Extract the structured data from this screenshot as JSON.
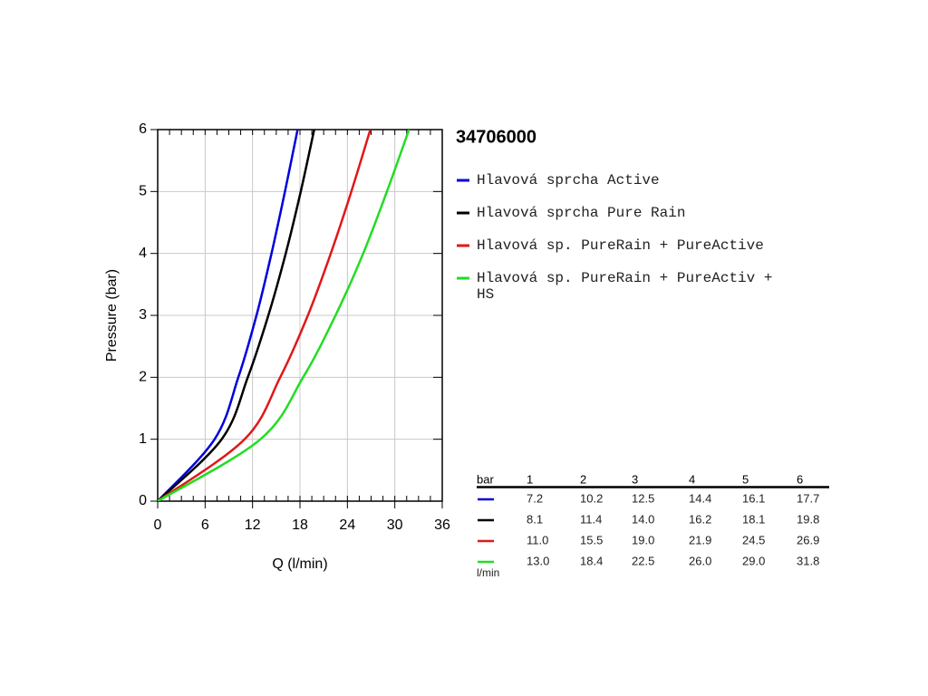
{
  "chart_data": {
    "type": "line",
    "title": "34706000",
    "x_label": "Q (l/min)",
    "y_label": "Pressure (bar)",
    "xlim": [
      0,
      36
    ],
    "xticks": [
      0,
      6,
      12,
      18,
      24,
      30,
      36
    ],
    "ylim": [
      0,
      6
    ],
    "yticks": [
      0,
      1,
      2,
      3,
      4,
      5,
      6
    ],
    "grid": true,
    "series": [
      {
        "name": "Hlavová sprcha Active",
        "color": "#0000dd",
        "x": [
          0,
          7.2,
          10.2,
          12.5,
          14.4,
          16.1,
          17.7
        ],
        "values": [
          0,
          1,
          2,
          3,
          4,
          5,
          6
        ]
      },
      {
        "name": "Hlavová sprcha Pure Rain",
        "color": "#000000",
        "x": [
          0,
          8.1,
          11.4,
          14.0,
          16.2,
          18.1,
          19.8
        ],
        "values": [
          0,
          1,
          2,
          3,
          4,
          5,
          6
        ]
      },
      {
        "name": "Hlavová sp. PureRain + PureActive",
        "color": "#e01818",
        "x": [
          0,
          11.0,
          15.5,
          19.0,
          21.9,
          24.5,
          26.9
        ],
        "values": [
          0,
          1,
          2,
          3,
          4,
          5,
          6
        ]
      },
      {
        "name": "Hlavová sp. PureRain + PureActiv + HS",
        "color": "#22dd22",
        "x": [
          0,
          13.0,
          18.4,
          22.5,
          26.0,
          29.0,
          31.8
        ],
        "values": [
          0,
          1,
          2,
          3,
          4,
          5,
          6
        ]
      }
    ]
  },
  "table": {
    "header": [
      "bar",
      "1",
      "2",
      "3",
      "4",
      "5",
      "6"
    ],
    "unit": "l/min",
    "rows": [
      [
        "7.2",
        "10.2",
        "12.5",
        "14.4",
        "16.1",
        "17.7"
      ],
      [
        "8.1",
        "11.4",
        "14.0",
        "16.2",
        "18.1",
        "19.8"
      ],
      [
        "11.0",
        "15.5",
        "19.0",
        "21.9",
        "24.5",
        "26.9"
      ],
      [
        "13.0",
        "18.4",
        "22.5",
        "26.0",
        "29.0",
        "31.8"
      ]
    ]
  }
}
